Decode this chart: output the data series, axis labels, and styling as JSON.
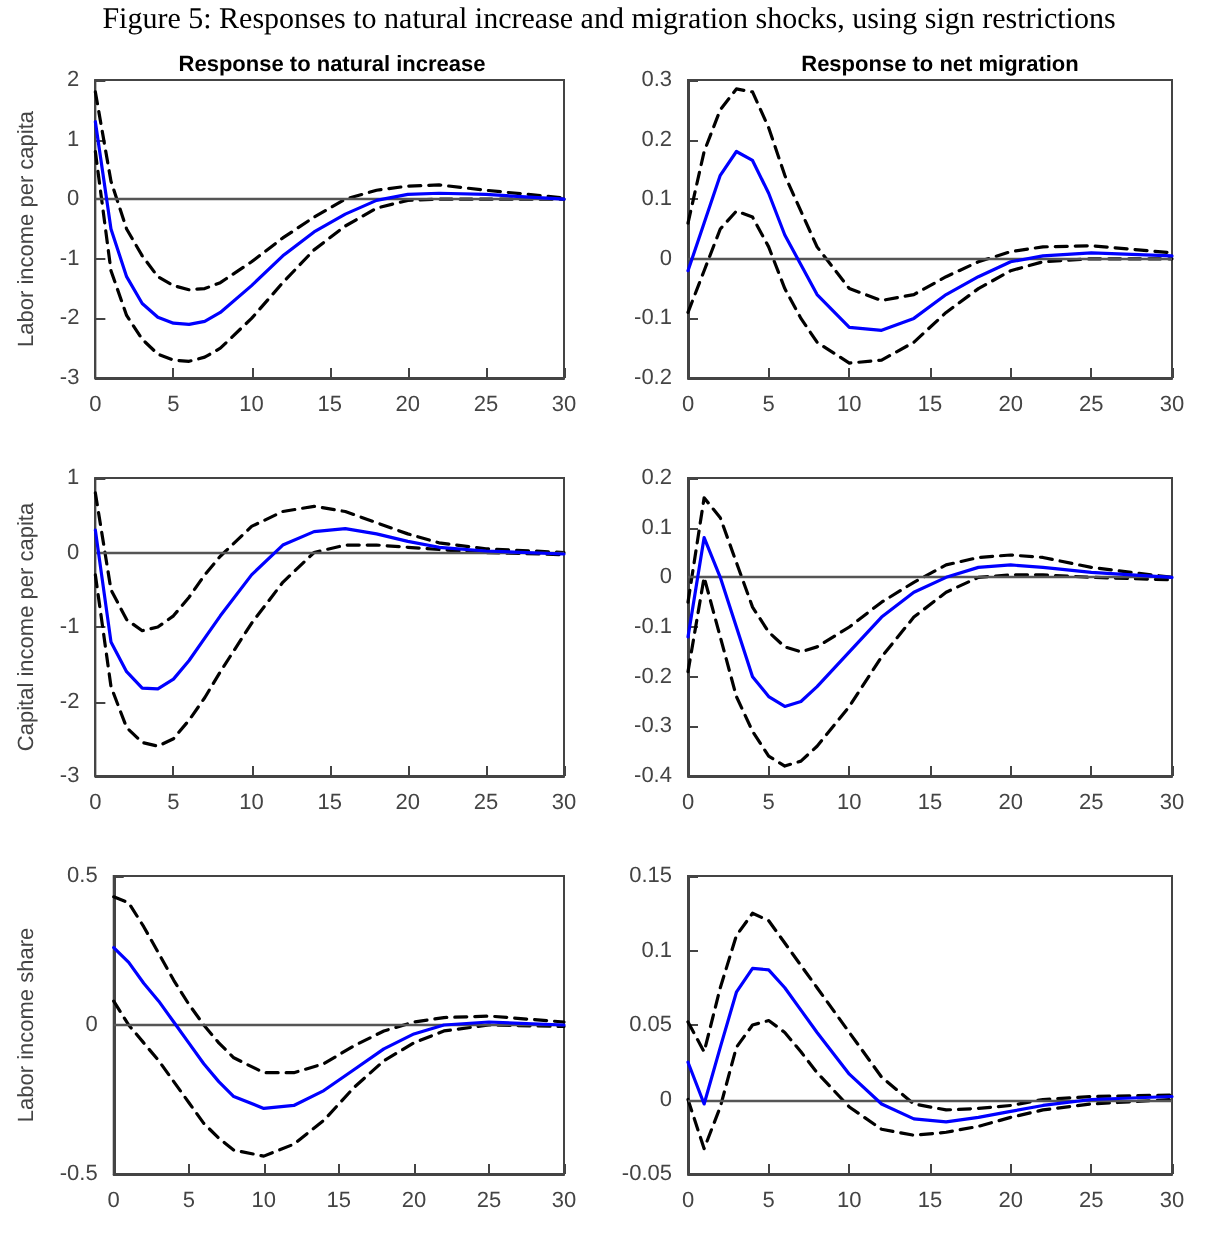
{
  "chart_data": [
    {
      "type": "line",
      "title": "Response to natural increase",
      "ylabel": "Labor income per capita",
      "annotations": [
        "Figure 5: Responses to natural increase and migration shocks, using sign restrictions"
      ],
      "x": [
        0,
        1,
        2,
        3,
        4,
        5,
        6,
        7,
        8,
        10,
        12,
        14,
        16,
        18,
        20,
        22,
        25,
        30
      ],
      "xlim": [
        0,
        30
      ],
      "xticks": [
        0,
        5,
        10,
        15,
        20,
        25,
        30
      ],
      "ylim": [
        -3,
        2
      ],
      "yticks": [
        -3,
        -2,
        -1,
        0,
        1,
        2
      ],
      "grid": false,
      "marker": "none",
      "ref_lines": [
        {
          "axis": "y",
          "value": 0,
          "color": "#555555"
        }
      ],
      "series": [
        {
          "color": "#000000",
          "line_style": "dashed",
          "values": [
            1.8,
            0.3,
            -0.5,
            -0.95,
            -1.3,
            -1.45,
            -1.52,
            -1.5,
            -1.4,
            -1.05,
            -0.65,
            -0.3,
            0.0,
            0.15,
            0.22,
            0.24,
            0.15,
            0.02
          ]
        },
        {
          "color": "#000000",
          "line_style": "dashed",
          "values": [
            0.8,
            -1.2,
            -1.95,
            -2.35,
            -2.6,
            -2.7,
            -2.72,
            -2.65,
            -2.5,
            -2.0,
            -1.4,
            -0.85,
            -0.45,
            -0.15,
            -0.02,
            0.0,
            0.0,
            0.0
          ]
        },
        {
          "color": "#0000ff",
          "line_style": "solid",
          "values": [
            1.3,
            -0.5,
            -1.3,
            -1.75,
            -1.98,
            -2.08,
            -2.1,
            -2.05,
            -1.9,
            -1.45,
            -0.95,
            -0.55,
            -0.25,
            -0.02,
            0.08,
            0.1,
            0.08,
            0.0
          ]
        }
      ]
    },
    {
      "type": "line",
      "title": "Response to net migration",
      "x": [
        0,
        1,
        2,
        3,
        4,
        5,
        6,
        7,
        8,
        10,
        12,
        14,
        16,
        18,
        20,
        22,
        25,
        30
      ],
      "xlim": [
        0,
        30
      ],
      "xticks": [
        0,
        5,
        10,
        15,
        20,
        25,
        30
      ],
      "ylim": [
        -0.2,
        0.3
      ],
      "yticks": [
        -0.2,
        -0.1,
        0,
        0.1,
        0.2,
        0.3
      ],
      "grid": false,
      "marker": "none",
      "ref_lines": [
        {
          "axis": "y",
          "value": 0,
          "color": "#555555"
        }
      ],
      "series": [
        {
          "color": "#000000",
          "line_style": "dashed",
          "values": [
            0.06,
            0.18,
            0.25,
            0.285,
            0.28,
            0.22,
            0.14,
            0.08,
            0.02,
            -0.05,
            -0.07,
            -0.06,
            -0.03,
            -0.005,
            0.012,
            0.02,
            0.022,
            0.01
          ]
        },
        {
          "color": "#000000",
          "line_style": "dashed",
          "values": [
            -0.09,
            -0.02,
            0.05,
            0.08,
            0.07,
            0.02,
            -0.05,
            -0.1,
            -0.14,
            -0.175,
            -0.17,
            -0.14,
            -0.09,
            -0.05,
            -0.02,
            -0.005,
            0.0,
            0.0
          ]
        },
        {
          "color": "#0000ff",
          "line_style": "solid",
          "values": [
            -0.02,
            0.06,
            0.14,
            0.18,
            0.165,
            0.11,
            0.04,
            -0.01,
            -0.06,
            -0.115,
            -0.12,
            -0.1,
            -0.06,
            -0.03,
            -0.005,
            0.005,
            0.01,
            0.005
          ]
        }
      ]
    },
    {
      "type": "line",
      "ylabel": "Capital income per capita",
      "x": [
        0,
        1,
        2,
        3,
        4,
        5,
        6,
        7,
        8,
        10,
        12,
        14,
        16,
        18,
        20,
        22,
        25,
        30
      ],
      "xlim": [
        0,
        30
      ],
      "xticks": [
        0,
        5,
        10,
        15,
        20,
        25,
        30
      ],
      "ylim": [
        -3,
        1
      ],
      "yticks": [
        -3,
        -2,
        -1,
        0,
        1
      ],
      "grid": false,
      "marker": "none",
      "ref_lines": [
        {
          "axis": "y",
          "value": 0,
          "color": "#555555"
        }
      ],
      "series": [
        {
          "color": "#000000",
          "line_style": "dashed",
          "values": [
            0.8,
            -0.5,
            -0.9,
            -1.05,
            -1.0,
            -0.85,
            -0.6,
            -0.3,
            -0.05,
            0.35,
            0.55,
            0.62,
            0.55,
            0.4,
            0.25,
            0.13,
            0.05,
            0.0
          ]
        },
        {
          "color": "#000000",
          "line_style": "dashed",
          "values": [
            -0.3,
            -1.8,
            -2.35,
            -2.55,
            -2.6,
            -2.5,
            -2.25,
            -1.95,
            -1.6,
            -0.95,
            -0.4,
            0.0,
            0.1,
            0.1,
            0.07,
            0.04,
            0.0,
            -0.03
          ]
        },
        {
          "color": "#0000ff",
          "line_style": "solid",
          "values": [
            0.3,
            -1.2,
            -1.6,
            -1.82,
            -1.83,
            -1.7,
            -1.45,
            -1.15,
            -0.85,
            -0.3,
            0.1,
            0.28,
            0.32,
            0.25,
            0.15,
            0.07,
            0.02,
            -0.02
          ]
        }
      ]
    },
    {
      "type": "line",
      "x": [
        0,
        1,
        2,
        3,
        4,
        5,
        6,
        7,
        8,
        10,
        12,
        14,
        16,
        18,
        20,
        22,
        25,
        30
      ],
      "xlim": [
        0,
        30
      ],
      "xticks": [
        0,
        5,
        10,
        15,
        20,
        25,
        30
      ],
      "ylim": [
        -0.4,
        0.2
      ],
      "yticks": [
        -0.4,
        -0.3,
        -0.2,
        -0.1,
        0,
        0.1,
        0.2
      ],
      "grid": false,
      "marker": "none",
      "ref_lines": [
        {
          "axis": "y",
          "value": 0,
          "color": "#555555"
        }
      ],
      "series": [
        {
          "color": "#000000",
          "line_style": "dashed",
          "values": [
            -0.05,
            0.16,
            0.12,
            0.03,
            -0.06,
            -0.11,
            -0.14,
            -0.15,
            -0.14,
            -0.1,
            -0.05,
            -0.01,
            0.025,
            0.04,
            0.045,
            0.04,
            0.02,
            0.0
          ]
        },
        {
          "color": "#000000",
          "line_style": "dashed",
          "values": [
            -0.19,
            0.0,
            -0.12,
            -0.24,
            -0.31,
            -0.36,
            -0.38,
            -0.37,
            -0.34,
            -0.26,
            -0.16,
            -0.08,
            -0.03,
            0.0,
            0.005,
            0.005,
            0.0,
            -0.005
          ]
        },
        {
          "color": "#0000ff",
          "line_style": "solid",
          "values": [
            -0.12,
            0.08,
            0.0,
            -0.1,
            -0.2,
            -0.24,
            -0.26,
            -0.25,
            -0.22,
            -0.15,
            -0.08,
            -0.03,
            0.0,
            0.02,
            0.025,
            0.02,
            0.01,
            0.0
          ]
        }
      ]
    },
    {
      "type": "line",
      "ylabel": "Labor income share",
      "x": [
        0,
        1,
        2,
        3,
        4,
        5,
        6,
        7,
        8,
        10,
        12,
        14,
        16,
        18,
        20,
        22,
        25,
        30
      ],
      "xlim": [
        0,
        30
      ],
      "xticks": [
        0,
        5,
        10,
        15,
        20,
        25,
        30
      ],
      "ylim": [
        -0.5,
        0.5
      ],
      "yticks": [
        -0.5,
        0,
        0.5
      ],
      "grid": false,
      "marker": "none",
      "ref_lines": [
        {
          "axis": "y",
          "value": 0,
          "color": "#555555"
        }
      ],
      "series": [
        {
          "color": "#000000",
          "line_style": "dashed",
          "values": [
            0.43,
            0.41,
            0.33,
            0.24,
            0.15,
            0.07,
            0.0,
            -0.06,
            -0.11,
            -0.16,
            -0.16,
            -0.13,
            -0.07,
            -0.02,
            0.01,
            0.025,
            0.03,
            0.01
          ]
        },
        {
          "color": "#000000",
          "line_style": "dashed",
          "values": [
            0.08,
            0.0,
            -0.06,
            -0.12,
            -0.19,
            -0.26,
            -0.33,
            -0.38,
            -0.42,
            -0.44,
            -0.4,
            -0.32,
            -0.21,
            -0.12,
            -0.06,
            -0.02,
            0.0,
            -0.005
          ]
        },
        {
          "color": "#0000ff",
          "line_style": "solid",
          "values": [
            0.26,
            0.21,
            0.14,
            0.08,
            0.01,
            -0.06,
            -0.13,
            -0.19,
            -0.24,
            -0.28,
            -0.27,
            -0.22,
            -0.15,
            -0.08,
            -0.03,
            0.0,
            0.01,
            0.0
          ]
        }
      ]
    },
    {
      "type": "line",
      "x": [
        0,
        1,
        2,
        3,
        4,
        5,
        6,
        7,
        8,
        10,
        12,
        14,
        16,
        18,
        20,
        22,
        25,
        30
      ],
      "xlim": [
        0,
        30
      ],
      "xticks": [
        0,
        5,
        10,
        15,
        20,
        25,
        30
      ],
      "ylim": [
        -0.05,
        0.15
      ],
      "yticks": [
        -0.05,
        0,
        0.05,
        0.1,
        0.15
      ],
      "grid": false,
      "marker": "none",
      "ref_lines": [
        {
          "axis": "y",
          "value": 0,
          "color": "#555555"
        }
      ],
      "series": [
        {
          "color": "#000000",
          "line_style": "dashed",
          "values": [
            0.052,
            0.032,
            0.075,
            0.11,
            0.125,
            0.12,
            0.105,
            0.09,
            0.075,
            0.045,
            0.015,
            -0.003,
            -0.007,
            -0.006,
            -0.004,
            0.0,
            0.002,
            0.003
          ]
        },
        {
          "color": "#000000",
          "line_style": "dashed",
          "values": [
            0.0,
            -0.033,
            -0.005,
            0.035,
            0.05,
            0.053,
            0.045,
            0.032,
            0.018,
            -0.005,
            -0.02,
            -0.024,
            -0.022,
            -0.018,
            -0.012,
            -0.007,
            -0.003,
            0.0
          ]
        },
        {
          "color": "#0000ff",
          "line_style": "solid",
          "values": [
            0.025,
            -0.003,
            0.035,
            0.072,
            0.088,
            0.087,
            0.075,
            0.06,
            0.045,
            0.017,
            -0.003,
            -0.013,
            -0.015,
            -0.012,
            -0.008,
            -0.004,
            0.0,
            0.002
          ]
        }
      ]
    }
  ]
}
